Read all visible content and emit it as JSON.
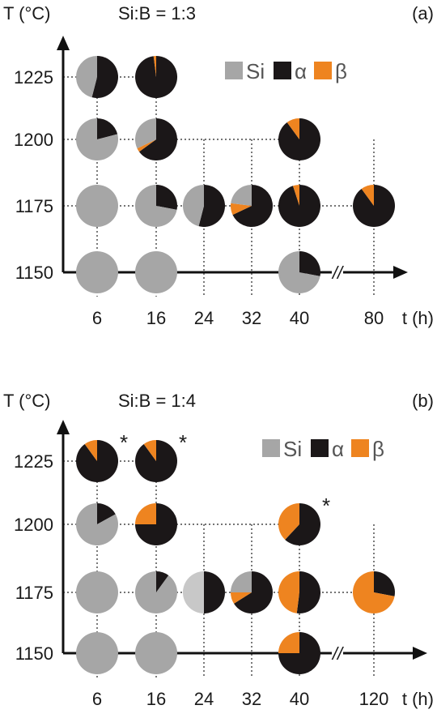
{
  "colors": {
    "Si": "#a6a6a6",
    "alpha": "#1b1718",
    "beta": "#ee8420",
    "Si_light": "#c8c8c8"
  },
  "chart_data": [
    {
      "type": "pie-grid",
      "panel_label": "(a)",
      "header": "Si:B = 1:3",
      "ylabel": "T (°C)",
      "xlabel": "t (h)",
      "x_ticks": [
        "6",
        "16",
        "24",
        "32",
        "40",
        "80"
      ],
      "y_ticks": [
        "1225",
        "1200",
        "1175",
        "1150"
      ],
      "axis_break": "//",
      "legend": [
        {
          "key": "Si",
          "label": "Si",
          "color": "#a6a6a6"
        },
        {
          "key": "alpha",
          "label": "α",
          "color": "#1b1718"
        },
        {
          "key": "beta",
          "label": "β",
          "color": "#ee8420"
        }
      ],
      "pies": [
        {
          "t": "6",
          "T": "1225",
          "alpha": 0.54,
          "beta": 0.0,
          "Si": 0.46
        },
        {
          "t": "16",
          "T": "1225",
          "alpha": 0.98,
          "beta": 0.02,
          "Si": 0.0
        },
        {
          "t": "6",
          "T": "1200",
          "alpha": 0.21,
          "beta": 0.0,
          "Si": 0.79
        },
        {
          "t": "16",
          "T": "1200",
          "alpha": 0.65,
          "beta": 0.03,
          "Si": 0.32
        },
        {
          "t": "40",
          "T": "1200",
          "alpha": 0.9,
          "beta": 0.1,
          "Si": 0.0
        },
        {
          "t": "6",
          "T": "1175",
          "alpha": 0.0,
          "beta": 0.0,
          "Si": 1.0
        },
        {
          "t": "16",
          "T": "1175",
          "alpha": 0.28,
          "beta": 0.0,
          "Si": 0.72
        },
        {
          "t": "24",
          "T": "1175",
          "alpha": 0.54,
          "beta": 0.0,
          "Si": 0.46
        },
        {
          "t": "32",
          "T": "1175",
          "alpha": 0.68,
          "beta": 0.09,
          "Si": 0.23
        },
        {
          "t": "40",
          "T": "1175",
          "alpha": 0.95,
          "beta": 0.05,
          "Si": 0.0
        },
        {
          "t": "80",
          "T": "1175",
          "alpha": 0.9,
          "beta": 0.1,
          "Si": 0.0
        },
        {
          "t": "6",
          "T": "1150",
          "alpha": 0.0,
          "beta": 0.0,
          "Si": 1.0
        },
        {
          "t": "16",
          "T": "1150",
          "alpha": 0.0,
          "beta": 0.0,
          "Si": 1.0
        },
        {
          "t": "40",
          "T": "1150",
          "alpha": 0.28,
          "beta": 0.0,
          "Si": 0.72
        }
      ]
    },
    {
      "type": "pie-grid",
      "panel_label": "(b)",
      "header": "Si:B = 1:4",
      "ylabel": "T (°C)",
      "xlabel": "t (h)",
      "x_ticks": [
        "6",
        "16",
        "24",
        "32",
        "40",
        "120"
      ],
      "y_ticks": [
        "1225",
        "1200",
        "1175",
        "1150"
      ],
      "axis_break": "//",
      "legend": [
        {
          "key": "Si",
          "label": "Si",
          "color": "#a6a6a6"
        },
        {
          "key": "alpha",
          "label": "α",
          "color": "#1b1718"
        },
        {
          "key": "beta",
          "label": "β",
          "color": "#ee8420"
        }
      ],
      "pies": [
        {
          "t": "6",
          "T": "1225",
          "alpha": 0.9,
          "beta": 0.1,
          "Si": 0.0,
          "mark": "*"
        },
        {
          "t": "16",
          "T": "1225",
          "alpha": 0.9,
          "beta": 0.1,
          "Si": 0.0,
          "mark": "*"
        },
        {
          "t": "6",
          "T": "1200",
          "alpha": 0.17,
          "beta": 0.0,
          "Si": 0.83
        },
        {
          "t": "16",
          "T": "1200",
          "alpha": 0.75,
          "beta": 0.25,
          "Si": 0.0
        },
        {
          "t": "40",
          "T": "1200",
          "alpha": 0.62,
          "beta": 0.38,
          "Si": 0.0,
          "mark": "*"
        },
        {
          "t": "6",
          "T": "1175",
          "alpha": 0.0,
          "beta": 0.0,
          "Si": 1.0
        },
        {
          "t": "16",
          "T": "1175",
          "alpha": 0.1,
          "beta": 0.0,
          "Si": 0.9
        },
        {
          "t": "24",
          "T": "1175",
          "alpha": 0.5,
          "beta": 0.0,
          "Si": 0.5,
          "si_shade": "light"
        },
        {
          "t": "32",
          "T": "1175",
          "alpha": 0.66,
          "beta": 0.09,
          "Si": 0.25
        },
        {
          "t": "40",
          "T": "1175",
          "alpha": 0.52,
          "beta": 0.48,
          "Si": 0.0
        },
        {
          "t": "120",
          "T": "1175",
          "alpha": 0.28,
          "beta": 0.72,
          "Si": 0.0
        },
        {
          "t": "6",
          "T": "1150",
          "alpha": 0.0,
          "beta": 0.0,
          "Si": 1.0
        },
        {
          "t": "16",
          "T": "1150",
          "alpha": 0.0,
          "beta": 0.0,
          "Si": 1.0
        },
        {
          "t": "40",
          "T": "1150",
          "alpha": 0.75,
          "beta": 0.25,
          "Si": 0.0
        }
      ]
    }
  ]
}
